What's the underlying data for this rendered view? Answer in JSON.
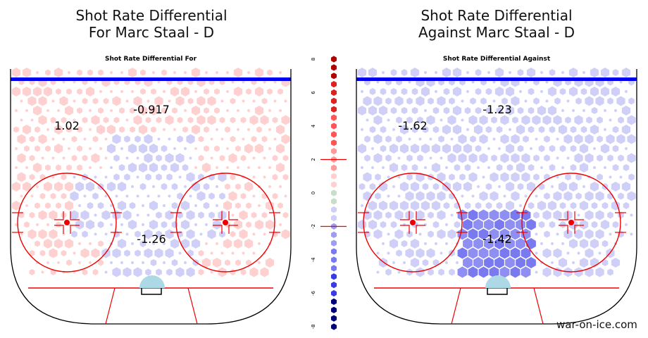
{
  "figure": {
    "left_title": [
      "Shot Rate Differential",
      "For Marc Staal - D"
    ],
    "right_title": [
      "Shot Rate Differential",
      "Against Marc Staal - D"
    ],
    "credit": "war-on-ice.com"
  },
  "colors": {
    "pos_light": "#ffd0d0",
    "pos_mid": "#ff9a9a",
    "pos_dark": "#b00000",
    "neg_light": "#cfcff7",
    "neg_mid": "#7a7af0",
    "neg_dark": "#00007a",
    "neutral": "#c9dec9",
    "crease": "#add8e6",
    "blue_line": "#0000ee",
    "red_line": "#ee0000"
  },
  "chart_data": [
    {
      "type": "heatmap",
      "title": "Shot Rate Differential For",
      "region_labels": [
        {
          "zone": "left point / wing",
          "value": "1.02"
        },
        {
          "zone": "high slot",
          "value": "-0.917"
        },
        {
          "zone": "low slot",
          "value": "-1.26"
        }
      ]
    },
    {
      "type": "heatmap",
      "title": "Shot Rate Differential Against",
      "region_labels": [
        {
          "zone": "left point / wing",
          "value": "-1.62"
        },
        {
          "zone": "high slot",
          "value": "-1.23"
        },
        {
          "zone": "low slot",
          "value": "-1.42"
        }
      ]
    },
    {
      "type": "legend-scale",
      "ticks": [
        "8",
        "6",
        "4",
        "2",
        "0",
        "-2",
        "-4",
        "-6",
        "-8"
      ],
      "range": [
        -8,
        8
      ],
      "marker_line_values": [
        2,
        -2
      ],
      "cells": [
        8,
        7.5,
        7,
        6.5,
        6,
        5.5,
        5,
        4.5,
        4,
        3.5,
        3,
        2.5,
        2,
        1.5,
        1,
        0.5,
        0,
        -0.5,
        -1,
        -1.5,
        -2,
        -2.5,
        -3,
        -3.5,
        -4,
        -4.5,
        -5,
        -5.5,
        -6,
        -6.5,
        -7,
        -7.5,
        -8
      ]
    }
  ]
}
